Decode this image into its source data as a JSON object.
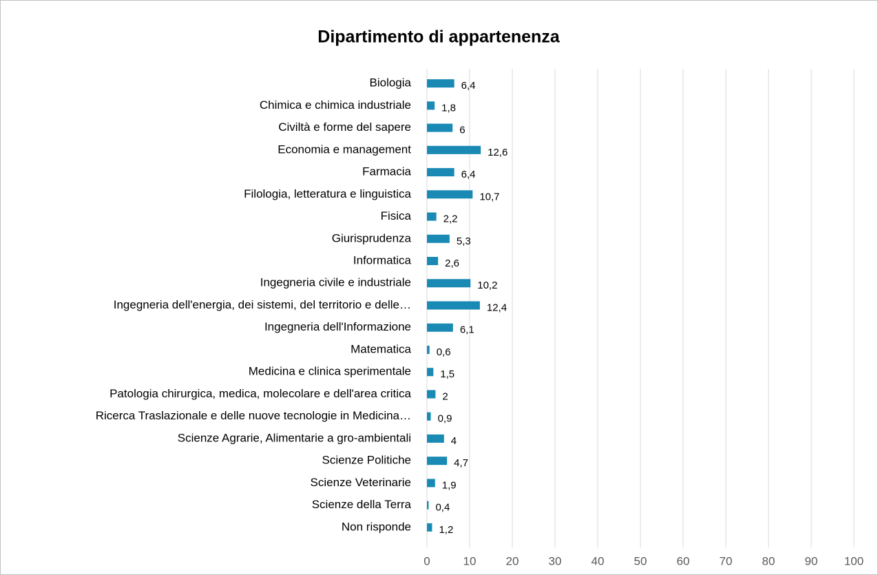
{
  "chart_data": {
    "type": "bar",
    "orientation": "horizontal",
    "title": "Dipartimento di appartenenza",
    "categories": [
      "Biologia",
      "Chimica e chimica industriale",
      "Civiltà e forme del sapere",
      "Economia e management",
      "Farmacia",
      "Filologia, letteratura e linguistica",
      "Fisica",
      "Giurisprudenza",
      "Informatica",
      "Ingegneria civile e industriale",
      "Ingegneria dell'energia, dei sistemi, del territorio e delle…",
      "Ingegneria dell'Informazione",
      "Matematica",
      "Medicina e clinica sperimentale",
      "Patologia chirurgica, medica, molecolare e dell'area critica",
      "Ricerca Traslazionale e delle nuove tecnologie in Medicina…",
      "Scienze Agrarie, Alimentarie a gro-ambientali",
      "Scienze Politiche",
      "Scienze Veterinarie",
      "Scienze della Terra",
      "Non risponde"
    ],
    "values": [
      6.4,
      1.8,
      6,
      12.6,
      6.4,
      10.7,
      2.2,
      5.3,
      2.6,
      10.2,
      12.4,
      6.1,
      0.6,
      1.5,
      2,
      0.9,
      4,
      4.7,
      1.9,
      0.4,
      1.2
    ],
    "value_labels": [
      "6,4",
      "1,8",
      "6",
      "12,6",
      "6,4",
      "10,7",
      "2,2",
      "5,3",
      "2,6",
      "10,2",
      "12,4",
      "6,1",
      "0,6",
      "1,5",
      "2",
      "0,9",
      "4",
      "4,7",
      "1,9",
      "0,4",
      "1,2"
    ],
    "color": "#1a8ab4",
    "xlim": [
      0,
      100
    ],
    "xticks": [
      0,
      10,
      20,
      30,
      40,
      50,
      60,
      70,
      80,
      90,
      100
    ],
    "grid": true
  }
}
